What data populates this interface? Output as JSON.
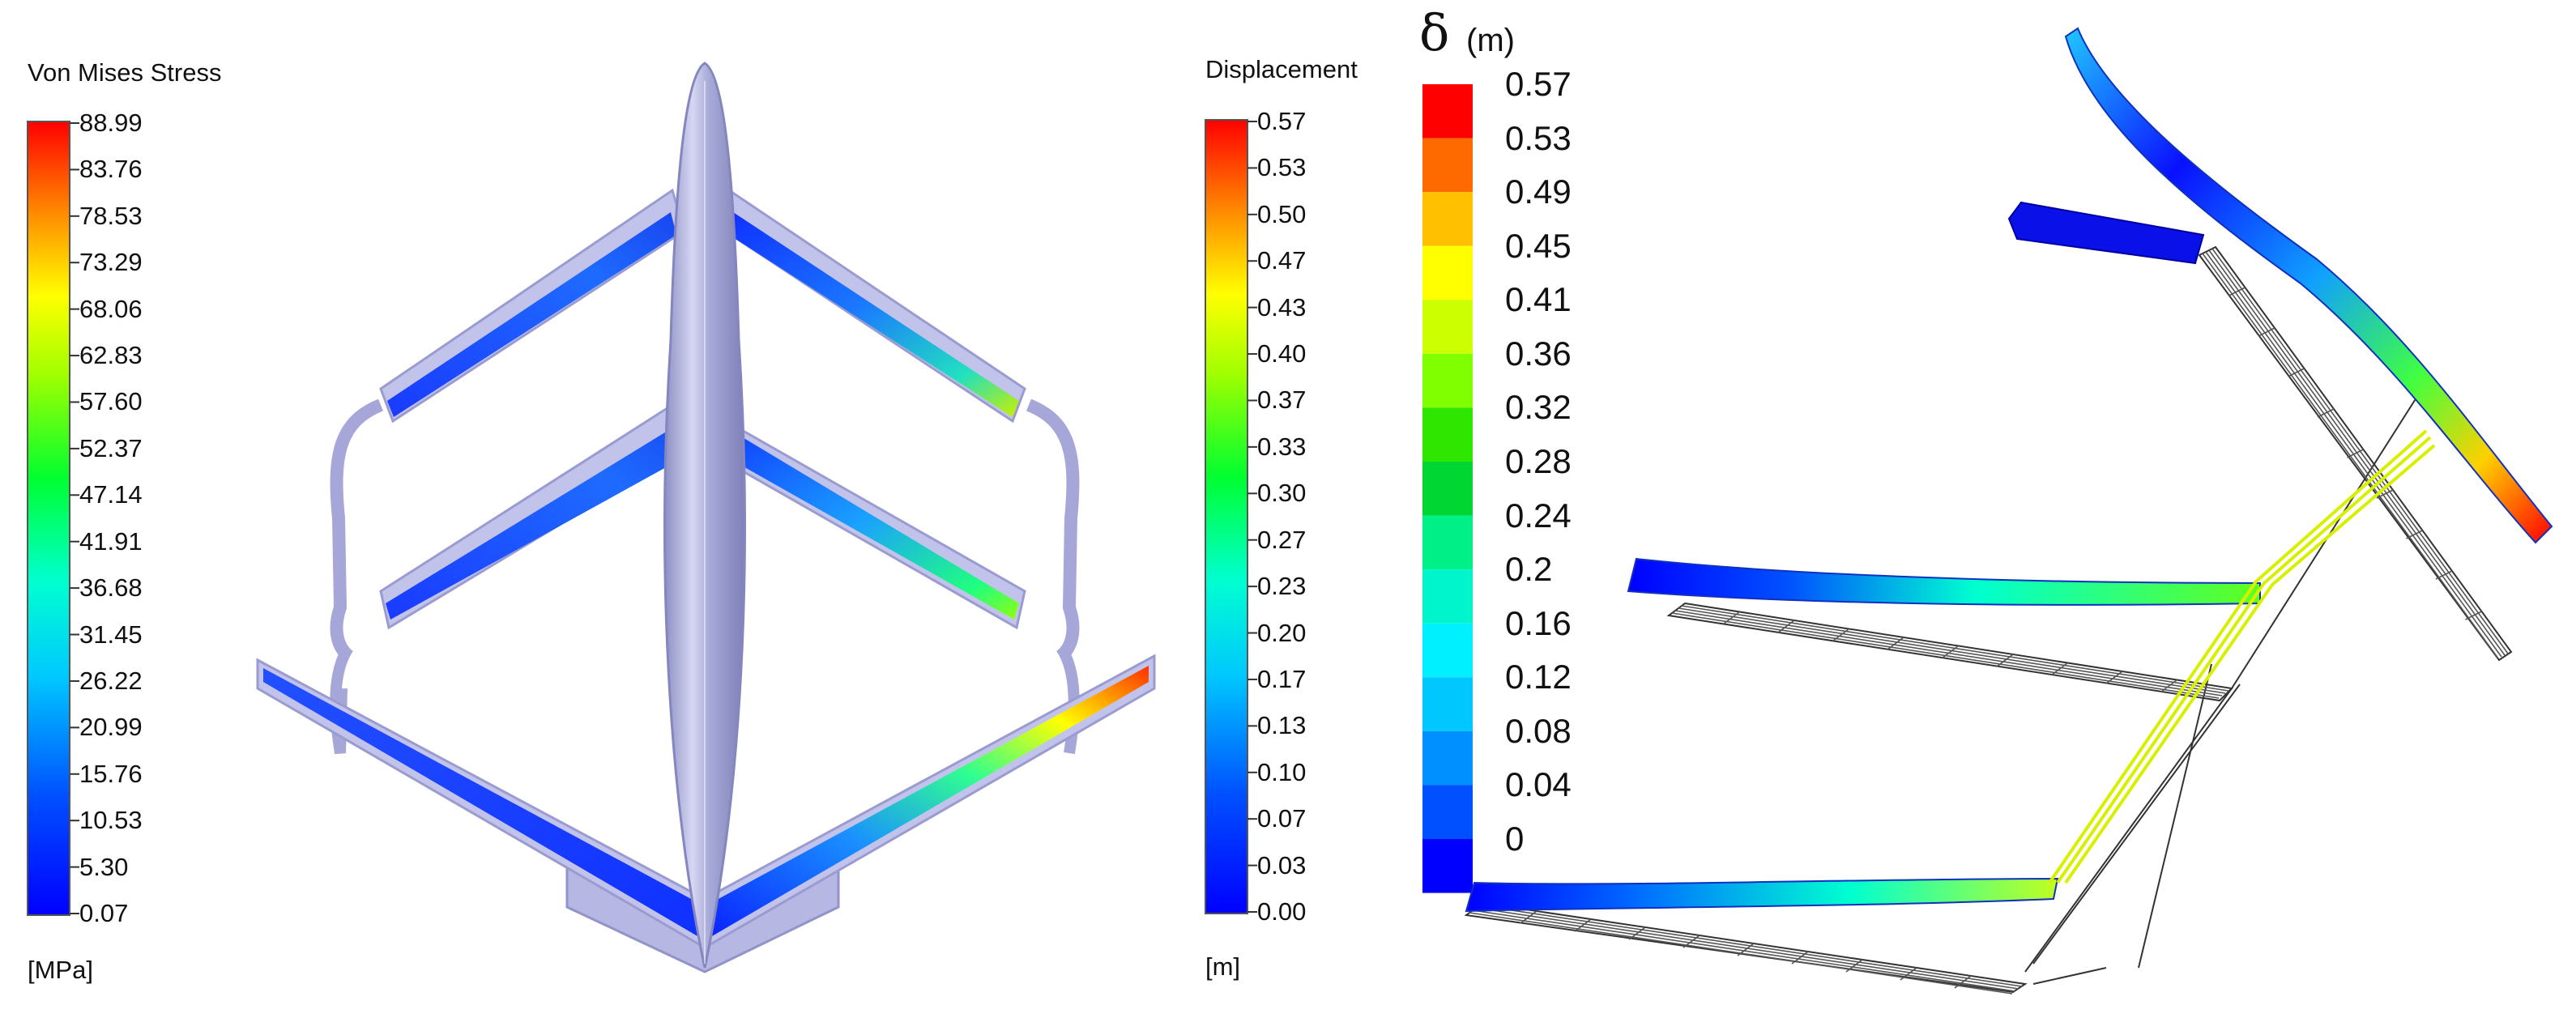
{
  "legend_stress": {
    "title": "Von Mises Stress",
    "unit": "[MPa]",
    "ticks": [
      "88.99",
      "83.76",
      "78.53",
      "73.29",
      "68.06",
      "62.83",
      "57.60",
      "52.37",
      "47.14",
      "41.91",
      "36.68",
      "31.45",
      "26.22",
      "20.99",
      "15.76",
      "10.53",
      "5.30",
      "0.07"
    ]
  },
  "legend_disp": {
    "title": "Displacement",
    "unit": "[m]",
    "ticks": [
      "0.57",
      "0.53",
      "0.50",
      "0.47",
      "0.43",
      "0.40",
      "0.37",
      "0.33",
      "0.30",
      "0.27",
      "0.23",
      "0.20",
      "0.17",
      "0.13",
      "0.10",
      "0.07",
      "0.03",
      "0.00"
    ]
  },
  "legend_delta": {
    "symbol": "δ",
    "unit": "(m)",
    "ticks": [
      "0.57",
      "0.53",
      "0.49",
      "0.45",
      "0.41",
      "0.36",
      "0.32",
      "0.28",
      "0.24",
      "0.2",
      "0.16",
      "0.12",
      "0.08",
      "0.04",
      "0"
    ],
    "colors": [
      "#ff0000",
      "#ff6a00",
      "#ffc000",
      "#ffff00",
      "#ccff00",
      "#7fff00",
      "#2ee600",
      "#00d633",
      "#00f088",
      "#00f5cc",
      "#00f0ff",
      "#00c8ff",
      "#0090ff",
      "#0050ff",
      "#0000ff"
    ]
  },
  "colors": {
    "jet": [
      "#0000ff",
      "#0060ff",
      "#00c0ff",
      "#00ffd0",
      "#00ff40",
      "#80ff00",
      "#ffff00",
      "#ffa000",
      "#ff3000",
      "#ff0000"
    ],
    "model_body": "#b4b5e0",
    "wireframe": "#333333"
  }
}
